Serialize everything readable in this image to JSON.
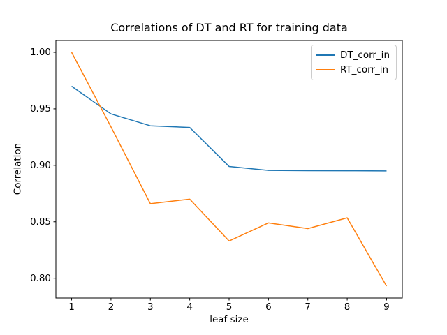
{
  "title": "Correlations of DT and RT for training data",
  "background_color": "#ffffff",
  "axes_edge_color": "#000000",
  "legend_border_color": "#cccccc",
  "chart_data": {
    "type": "line",
    "title": "Correlations of DT and RT for training data",
    "xlabel": "leaf size",
    "ylabel": "Correlation",
    "x": [
      1,
      2,
      3,
      4,
      5,
      6,
      7,
      8,
      9
    ],
    "series": [
      {
        "name": "DT_corr_in",
        "color": "#1f77b4",
        "values": [
          0.97,
          0.9455,
          0.935,
          0.9335,
          0.899,
          0.8955,
          0.8953,
          0.8952,
          0.895
        ]
      },
      {
        "name": "RT_corr_in",
        "color": "#ff7f0e",
        "values": [
          1.0,
          0.934,
          0.866,
          0.87,
          0.833,
          0.849,
          0.844,
          0.8535,
          0.793
        ]
      }
    ],
    "x_ticks": [
      "1",
      "2",
      "3",
      "4",
      "5",
      "6",
      "7",
      "8",
      "9"
    ],
    "x_tick_values": [
      1,
      2,
      3,
      4,
      5,
      6,
      7,
      8,
      9
    ],
    "y_ticks": [
      "1.00",
      "0.95",
      "0.90",
      "0.85",
      "0.80"
    ],
    "y_tick_values": [
      1.0,
      0.95,
      0.9,
      0.85,
      0.8
    ],
    "xlim": [
      0.6,
      9.4
    ],
    "ylim": [
      0.7825,
      1.0105
    ],
    "grid": false,
    "legend_position": "upper right"
  }
}
